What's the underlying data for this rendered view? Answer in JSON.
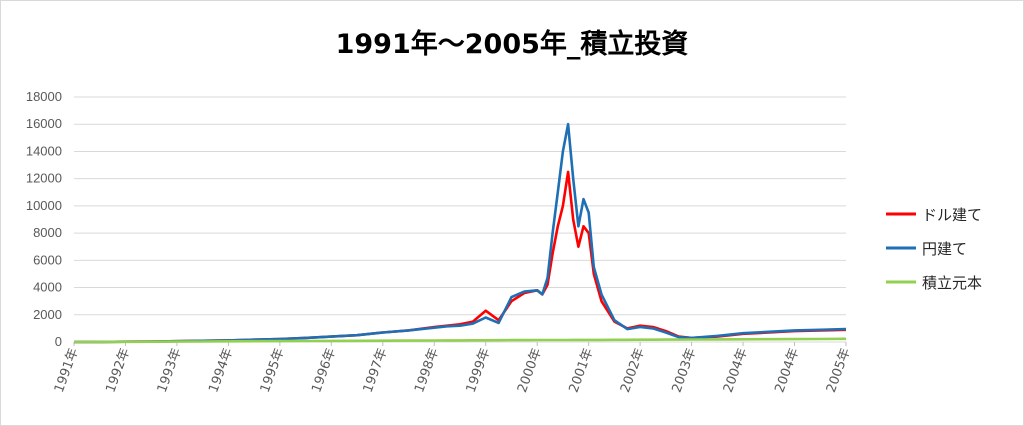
{
  "chart_data": {
    "type": "line",
    "title": "1991年～2005年_積立投資",
    "ylim": [
      0,
      18000
    ],
    "y_ticks": [
      0,
      2000,
      4000,
      6000,
      8000,
      10000,
      12000,
      14000,
      16000,
      18000
    ],
    "x_tick_labels": [
      "1991年",
      "1992年",
      "1993年",
      "1994年",
      "1995年",
      "1996年",
      "1997年",
      "1998年",
      "1999年",
      "2000年",
      "2001年",
      "2002年",
      "2003年",
      "2004年",
      "2004年",
      "2005年"
    ],
    "grid": true,
    "legend_position": "right",
    "x": [
      0,
      0.5,
      1,
      1.5,
      2,
      2.5,
      3,
      3.5,
      4,
      4.5,
      5,
      5.5,
      6,
      6.5,
      7,
      7.25,
      7.5,
      7.75,
      8,
      8.25,
      8.5,
      8.75,
      9,
      9.1,
      9.2,
      9.3,
      9.4,
      9.5,
      9.6,
      9.7,
      9.8,
      9.9,
      10,
      10.1,
      10.25,
      10.5,
      10.75,
      11,
      11.25,
      11.5,
      11.75,
      12,
      12.5,
      13,
      13.5,
      14,
      14.5,
      15
    ],
    "series": [
      {
        "name": "ドル建て",
        "color": "#ff0000",
        "values": [
          0,
          10,
          20,
          40,
          60,
          90,
          120,
          170,
          220,
          300,
          400,
          500,
          700,
          850,
          1100,
          1200,
          1300,
          1500,
          2300,
          1600,
          3000,
          3600,
          3800,
          3500,
          4200,
          6500,
          8500,
          10000,
          12500,
          9000,
          7000,
          8500,
          8000,
          5000,
          3000,
          1500,
          1000,
          1200,
          1100,
          800,
          400,
          300,
          400,
          600,
          700,
          800,
          850,
          900
        ]
      },
      {
        "name": "円建て",
        "color": "#1f6fb4",
        "values": [
          0,
          10,
          20,
          40,
          60,
          90,
          120,
          170,
          220,
          300,
          400,
          500,
          700,
          850,
          1050,
          1150,
          1200,
          1350,
          1800,
          1400,
          3300,
          3700,
          3800,
          3500,
          4700,
          8000,
          11000,
          14000,
          16000,
          12000,
          8500,
          10500,
          9500,
          5500,
          3500,
          1600,
          950,
          1100,
          1000,
          700,
          350,
          300,
          450,
          650,
          750,
          850,
          900,
          950
        ]
      },
      {
        "name": "積立元本",
        "color": "#92d050",
        "values": [
          0,
          8,
          16,
          24,
          32,
          40,
          48,
          56,
          64,
          72,
          80,
          88,
          96,
          104,
          112,
          116,
          120,
          124,
          128,
          132,
          136,
          140,
          144,
          145,
          146,
          147,
          148,
          149,
          150,
          151,
          152,
          153,
          154,
          155,
          156,
          160,
          164,
          168,
          172,
          176,
          180,
          184,
          192,
          200,
          208,
          216,
          224,
          232
        ]
      }
    ]
  }
}
